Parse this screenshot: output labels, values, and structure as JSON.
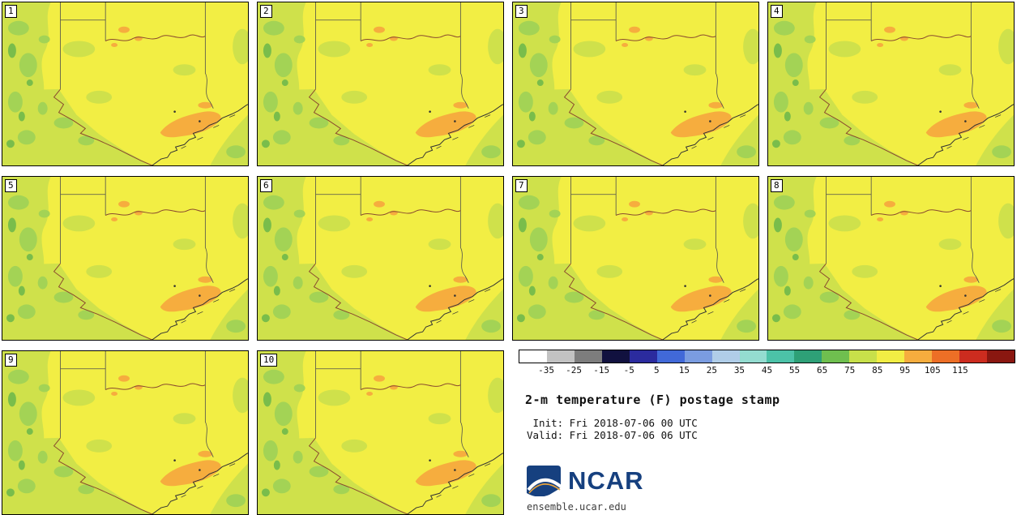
{
  "panels": {
    "members": [
      "1",
      "2",
      "3",
      "4",
      "5",
      "6",
      "7",
      "8",
      "9",
      "10"
    ]
  },
  "colorbar": {
    "segments": [
      "#ffffff",
      "#c2c2c2",
      "#7d7d7d",
      "#11113f",
      "#2b2b9e",
      "#4169d8",
      "#7a9ce0",
      "#b0cde8",
      "#94dcd0",
      "#4cc2a8",
      "#2ea077",
      "#6fbf4f",
      "#c8e04a",
      "#f2ee44",
      "#f6ad3e",
      "#ed6f26",
      "#cc2c1f",
      "#8a1710"
    ],
    "ticks": [
      "-35",
      "-25",
      "-15",
      "-5",
      "5",
      "15",
      "25",
      "35",
      "45",
      "55",
      "65",
      "75",
      "85",
      "95",
      "105",
      "115"
    ]
  },
  "info": {
    "title": "2-m temperature (F) postage stamp",
    "init": " Init: Fri 2018-07-06 00 UTC",
    "valid": "Valid: Fri 2018-07-06 06 UTC"
  },
  "branding": {
    "name": "NCAR",
    "site": "ensemble.ucar.edu",
    "logo_blue": "#16407f"
  },
  "map_palette": {
    "base": "#f2ee44",
    "green_light": "#cfe14b",
    "green_mid": "#a3d355",
    "green_dark": "#79bd4b",
    "orange": "#f6ad3e",
    "border": "#4d4d4d",
    "river": "#8a4a2e",
    "coast": "#333333"
  }
}
